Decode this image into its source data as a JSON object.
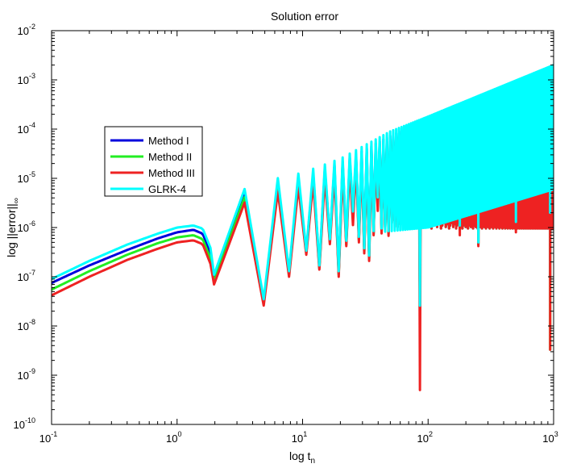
{
  "chart_data": {
    "type": "line",
    "title": "Solution error",
    "xlabel": {
      "base": "log t",
      "sub": "n"
    },
    "ylabel": {
      "base": "log ||error||",
      "sub": "∞"
    },
    "xscale": "log",
    "yscale": "log",
    "xlim": [
      0.1,
      1000
    ],
    "ylim": [
      1e-10,
      0.01
    ],
    "grid": false,
    "legend_position": "center-left",
    "x_ticks": [
      {
        "base": "10",
        "exp": "-1"
      },
      {
        "base": "10",
        "exp": "0"
      },
      {
        "base": "10",
        "exp": "1"
      },
      {
        "base": "10",
        "exp": "2"
      },
      {
        "base": "10",
        "exp": "3"
      }
    ],
    "y_ticks": [
      {
        "base": "10",
        "exp": "-10"
      },
      {
        "base": "10",
        "exp": "-9"
      },
      {
        "base": "10",
        "exp": "-8"
      },
      {
        "base": "10",
        "exp": "-7"
      },
      {
        "base": "10",
        "exp": "-6"
      },
      {
        "base": "10",
        "exp": "-5"
      },
      {
        "base": "10",
        "exp": "-4"
      },
      {
        "base": "10",
        "exp": "-3"
      },
      {
        "base": "10",
        "exp": "-2"
      }
    ],
    "series": [
      {
        "name": "Method I",
        "color": "#0000dd",
        "scale": 0.82,
        "points": [
          [
            0.1,
            7.5e-08
          ],
          [
            0.2,
            1.7e-07
          ],
          [
            0.4,
            3.5e-07
          ],
          [
            0.7,
            6e-07
          ],
          [
            1.0,
            8e-07
          ],
          [
            1.35,
            9e-07
          ],
          [
            1.6,
            7.5e-07
          ],
          [
            1.85,
            3e-07
          ],
          [
            1.97,
            9e-08
          ]
        ]
      },
      {
        "name": "Method II",
        "color": "#22ee22",
        "scale": 0.68,
        "points": [
          [
            0.1,
            5.5e-08
          ],
          [
            0.2,
            1.3e-07
          ],
          [
            0.4,
            2.8e-07
          ],
          [
            0.7,
            4.8e-07
          ],
          [
            1.0,
            6.3e-07
          ],
          [
            1.35,
            7e-07
          ],
          [
            1.6,
            5.8e-07
          ],
          [
            1.85,
            2.3e-07
          ],
          [
            1.97,
            8e-08
          ]
        ]
      },
      {
        "name": "Method III",
        "color": "#ee2222",
        "scale": 0.53,
        "points": [
          [
            0.1,
            4.2e-08
          ],
          [
            0.2,
            1e-07
          ],
          [
            0.4,
            2.2e-07
          ],
          [
            0.7,
            3.7e-07
          ],
          [
            1.0,
            5e-07
          ],
          [
            1.35,
            5.5e-07
          ],
          [
            1.6,
            4.6e-07
          ],
          [
            1.85,
            1.8e-07
          ],
          [
            1.97,
            7e-08
          ]
        ]
      },
      {
        "name": "GLRK-4",
        "color": "#00ffff",
        "scale": 1.0,
        "points": [
          [
            0.1,
            9e-08
          ],
          [
            0.2,
            2.1e-07
          ],
          [
            0.4,
            4.5e-07
          ],
          [
            0.7,
            7.5e-07
          ],
          [
            1.0,
            1e-06
          ],
          [
            1.35,
            1.1e-06
          ],
          [
            1.6,
            9.5e-07
          ],
          [
            1.85,
            3.8e-07
          ],
          [
            1.97,
            1.1e-07
          ]
        ]
      }
    ],
    "oscillation": {
      "x_range": [
        2.0,
        1000
      ],
      "upper_envelope": [
        [
          2.0,
          1.15e-06
        ],
        [
          3.7,
          7.5e-06
        ],
        [
          10,
          1.3e-05
        ],
        [
          20,
          2.5e-05
        ],
        [
          50,
          9e-05
        ],
        [
          100,
          0.00018
        ],
        [
          1000,
          0.002
        ]
      ],
      "cyan_lower_envelope": [
        [
          40,
          8e-07
        ],
        [
          100,
          1e-06
        ],
        [
          1000,
          6e-06
        ]
      ],
      "minima": [
        {
          "x": 2.0,
          "series_min": [
            8e-08,
            7.2e-08,
            6.8e-08,
            8.5e-08
          ]
        },
        {
          "x": 4.8,
          "series_min": [
            3.2e-08,
            2.9e-08,
            2.6e-08,
            3.5e-08
          ]
        },
        {
          "x": 8.0,
          "series_min": [
            1.2e-07,
            1.1e-07,
            1e-07,
            1.3e-07
          ]
        },
        {
          "x": 11.0,
          "series_min": [
            3.2e-07,
            3e-07,
            2.8e-07,
            3.4e-07
          ]
        },
        {
          "x": 14.2,
          "series_min": [
            1.6e-07,
            1.5e-07,
            1.4e-07,
            1.7e-07
          ]
        },
        {
          "x": 17.3,
          "series_min": [
            5.5e-07,
            5e-07,
            4.6e-07,
            5.8e-07
          ]
        },
        {
          "x": 20.5,
          "series_min": [
            1.2e-07,
            1.1e-07,
            1e-07,
            1.3e-07
          ]
        },
        {
          "x": 23.6,
          "series_min": [
            5e-07,
            4.5e-07,
            4.2e-07,
            5.4e-07
          ]
        },
        {
          "x": 26.7,
          "series_min": [
            6e-07,
            5.5e-07,
            5e-07,
            6.5e-07
          ]
        },
        {
          "x": 29.9,
          "series_min": [
            3.5e-07,
            3.2e-07,
            3e-07,
            3.8e-07
          ]
        },
        {
          "x": 33.0,
          "series_min": [
            2.5e-07,
            2.3e-07,
            2.1e-07,
            2.7e-07
          ]
        },
        {
          "x": 36.1,
          "series_min": [
            8e-07,
            7.4e-07,
            7e-07,
            8.5e-07
          ]
        },
        {
          "x": 42.4,
          "series_min": [
            9e-07,
            8.2e-07,
            7.6e-07,
            9.6e-07
          ]
        },
        {
          "x": 48.7,
          "series_min": [
            8e-07,
            7.3e-07,
            6.8e-07,
            8.5e-07
          ]
        },
        {
          "x": 86.4,
          "series_min": [
            2.6e-08,
            2e-08,
            5e-10,
            2.6e-08
          ]
        },
        {
          "x": 180,
          "series_min": [
            1e-06,
            9e-07,
            7e-07,
            1.1e-06
          ]
        },
        {
          "x": 251,
          "series_min": [
            4.8e-07,
            4.5e-07,
            4.2e-07,
            5e-07
          ]
        },
        {
          "x": 500,
          "series_min": [
            1.2e-06,
            1e-06,
            8e-07,
            1.3e-06
          ]
        },
        {
          "x": 940,
          "series_min": [
            1e-07,
            3.3e-09,
            3.3e-09,
            2e-06
          ]
        }
      ]
    }
  }
}
